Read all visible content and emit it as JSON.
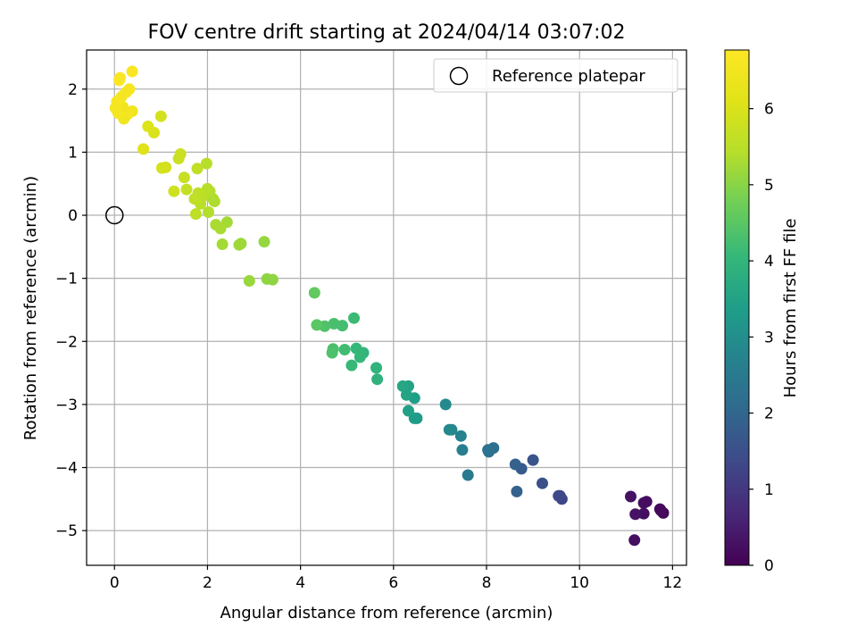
{
  "chart_data": {
    "type": "scatter",
    "title": "FOV centre drift starting at 2024/04/14 03:07:02",
    "xlabel": "Angular distance from reference (arcmin)",
    "ylabel": "Rotation from reference (arcmin)",
    "xlim": [
      -0.6,
      12.3
    ],
    "ylim": [
      -5.55,
      2.62
    ],
    "xticks": [
      0,
      2,
      4,
      6,
      8,
      10,
      12
    ],
    "yticks": [
      -5,
      -4,
      -3,
      -2,
      -1,
      0,
      1,
      2
    ],
    "grid": true,
    "legend": {
      "position": "top-right",
      "entries": [
        "Reference platepar"
      ]
    },
    "reference_point": {
      "x": 0,
      "y": 0,
      "label": "Reference platepar"
    },
    "colorbar": {
      "label": "Hours from first FF file",
      "range": [
        0,
        6.77
      ],
      "ticks": [
        0,
        1,
        2,
        3,
        4,
        5,
        6
      ],
      "colormap": "viridis"
    },
    "series": [
      {
        "points": [
          [
            11.8,
            -4.72,
            0.1
          ],
          [
            11.75,
            -4.68,
            0.1
          ],
          [
            11.73,
            -4.66,
            0.15
          ],
          [
            11.44,
            -4.54,
            0.2
          ],
          [
            11.38,
            -4.56,
            0.2
          ],
          [
            11.38,
            -4.73,
            0.25
          ],
          [
            11.2,
            -4.74,
            0.3
          ],
          [
            11.1,
            -4.46,
            0.3
          ],
          [
            11.18,
            -5.15,
            0.25
          ],
          [
            9.62,
            -4.5,
            1.3
          ],
          [
            9.58,
            -4.45,
            1.3
          ],
          [
            9.55,
            -4.45,
            1.35
          ],
          [
            9.2,
            -4.25,
            1.5
          ],
          [
            9.0,
            -3.88,
            1.6
          ],
          [
            8.75,
            -4.02,
            1.7
          ],
          [
            8.65,
            -4.38,
            1.9
          ],
          [
            8.62,
            -3.95,
            1.9
          ],
          [
            8.15,
            -3.69,
            2.2
          ],
          [
            8.05,
            -3.75,
            2.3
          ],
          [
            8.03,
            -3.72,
            2.3
          ],
          [
            7.6,
            -4.12,
            2.5
          ],
          [
            7.48,
            -3.72,
            2.6
          ],
          [
            7.45,
            -3.5,
            2.7
          ],
          [
            7.25,
            -3.4,
            2.8
          ],
          [
            7.2,
            -3.4,
            2.85
          ],
          [
            7.12,
            -3.0,
            2.9
          ],
          [
            6.5,
            -3.22,
            3.3
          ],
          [
            6.45,
            -3.22,
            3.35
          ],
          [
            6.45,
            -2.9,
            3.4
          ],
          [
            6.32,
            -3.1,
            3.45
          ],
          [
            6.32,
            -2.71,
            3.5
          ],
          [
            6.28,
            -2.85,
            3.55
          ],
          [
            6.2,
            -2.71,
            3.6
          ],
          [
            5.65,
            -2.6,
            3.9
          ],
          [
            5.63,
            -2.42,
            3.95
          ],
          [
            5.35,
            -2.18,
            4.0
          ],
          [
            5.28,
            -2.25,
            4.05
          ],
          [
            5.2,
            -2.11,
            4.05
          ],
          [
            5.1,
            -2.38,
            4.1
          ],
          [
            5.15,
            -1.63,
            4.15
          ],
          [
            4.95,
            -2.13,
            4.2
          ],
          [
            4.9,
            -1.75,
            4.25
          ],
          [
            4.72,
            -1.72,
            4.3
          ],
          [
            4.7,
            -2.12,
            4.3
          ],
          [
            4.68,
            -2.18,
            4.35
          ],
          [
            4.52,
            -1.76,
            4.4
          ],
          [
            4.35,
            -1.74,
            4.5
          ],
          [
            4.3,
            -1.23,
            4.6
          ],
          [
            3.4,
            -1.02,
            5.05
          ],
          [
            3.28,
            -1.01,
            5.05
          ],
          [
            2.9,
            -1.04,
            5.15
          ],
          [
            3.22,
            -0.42,
            5.1
          ],
          [
            2.72,
            -0.45,
            5.15
          ],
          [
            2.68,
            -0.47,
            5.2
          ],
          [
            2.42,
            -0.11,
            5.25
          ],
          [
            2.32,
            -0.46,
            5.25
          ],
          [
            2.28,
            -0.21,
            5.3
          ],
          [
            2.18,
            -0.15,
            5.3
          ],
          [
            2.12,
            0.26,
            5.35
          ],
          [
            2.15,
            0.22,
            5.35
          ],
          [
            2.02,
            0.05,
            5.4
          ],
          [
            2.05,
            0.38,
            5.4
          ],
          [
            2.0,
            0.42,
            5.45
          ],
          [
            1.98,
            0.82,
            5.45
          ],
          [
            1.9,
            0.3,
            5.5
          ],
          [
            1.85,
            0.18,
            5.5
          ],
          [
            1.8,
            0.35,
            5.55
          ],
          [
            1.75,
            0.02,
            5.55
          ],
          [
            1.72,
            0.26,
            5.6
          ],
          [
            1.78,
            0.74,
            5.6
          ],
          [
            1.55,
            0.41,
            5.65
          ],
          [
            1.5,
            0.6,
            5.7
          ],
          [
            1.42,
            0.97,
            5.75
          ],
          [
            1.38,
            0.9,
            5.75
          ],
          [
            1.28,
            0.38,
            5.8
          ],
          [
            1.1,
            0.76,
            5.85
          ],
          [
            1.02,
            0.75,
            5.9
          ],
          [
            1.0,
            1.57,
            5.9
          ],
          [
            0.85,
            1.31,
            6.0
          ],
          [
            0.72,
            1.41,
            6.05
          ],
          [
            0.62,
            1.05,
            6.1
          ],
          [
            0.38,
            2.28,
            6.65
          ],
          [
            0.38,
            1.65,
            6.5
          ],
          [
            0.32,
            2.0,
            6.6
          ],
          [
            0.28,
            1.6,
            6.55
          ],
          [
            0.25,
            1.95,
            6.6
          ],
          [
            0.2,
            1.53,
            6.5
          ],
          [
            0.18,
            1.72,
            6.5
          ],
          [
            0.15,
            1.88,
            6.6
          ],
          [
            0.12,
            2.18,
            6.7
          ],
          [
            0.1,
            2.14,
            6.7
          ],
          [
            0.08,
            1.62,
            6.55
          ],
          [
            0.05,
            1.8,
            6.6
          ],
          [
            0.04,
            1.68,
            6.55
          ],
          [
            0.02,
            1.7,
            6.55
          ]
        ]
      }
    ]
  }
}
